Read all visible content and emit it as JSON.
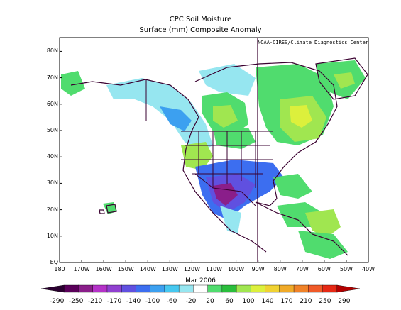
{
  "map": {
    "title": "CPC Soil Moisture",
    "subtitle": "Surface  (mm) Composite Anomaly",
    "credit": "NOAA-CIRES/Climate Diagnostics Center",
    "date_label": "Mar 2006",
    "lat_labels": [
      "80N",
      "70N",
      "60N",
      "50N",
      "40N",
      "30N",
      "20N",
      "10N",
      "EQ"
    ],
    "lon_labels": [
      "180",
      "170W",
      "160W",
      "150W",
      "140W",
      "130W",
      "120W",
      "110W",
      "100W",
      "90W",
      "80W",
      "70W",
      "60W",
      "50W",
      "40W"
    ],
    "lon_range": [
      -180,
      -40
    ],
    "lat_range": [
      0,
      85
    ],
    "colorbar": {
      "labels": [
        "-290",
        "-250",
        "-210",
        "-170",
        "-140",
        "-100",
        "-60",
        "-20",
        "20",
        "60",
        "100",
        "140",
        "170",
        "210",
        "250",
        "290"
      ],
      "colors": [
        "#2a0030",
        "#5a005a",
        "#8a1e8a",
        "#b432c8",
        "#9040d0",
        "#6050e0",
        "#3c6ef0",
        "#3ca0f0",
        "#46c8f0",
        "#96e6f0",
        "#ffffff",
        "#50dc6e",
        "#2abe3c",
        "#a0e650",
        "#dcf03c",
        "#f0d232",
        "#f0aa28",
        "#f08228",
        "#f05a28",
        "#e62814",
        "#b40000"
      ]
    },
    "regions": [
      {
        "name": "greenland-green",
        "color": "#50dc6e"
      },
      {
        "name": "alaska-cyan",
        "color": "#96e6f0"
      },
      {
        "name": "canada-green",
        "color": "#a0e650"
      },
      {
        "name": "quebec-yellow",
        "color": "#dcf03c"
      },
      {
        "name": "southwest-blue",
        "color": "#6050e0"
      },
      {
        "name": "mexico-purple",
        "color": "#8a1e8a"
      }
    ]
  }
}
